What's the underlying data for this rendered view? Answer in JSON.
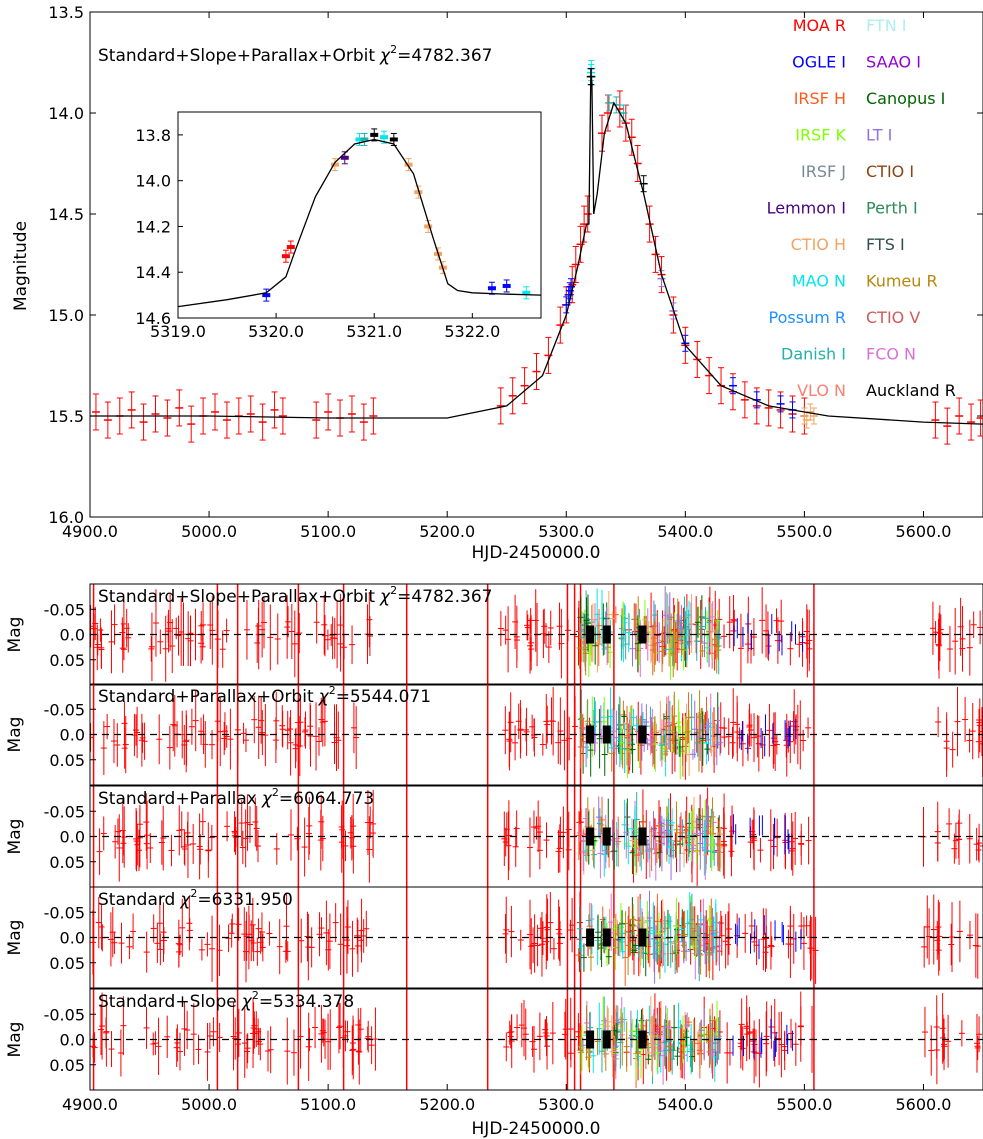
{
  "colors": {
    "MOA R": "#ff0000",
    "OGLE I": "#0000ff",
    "IRSF H": "#ff5a1e",
    "IRSF K": "#7fff00",
    "IRSF J": "#778899",
    "Lemmon I": "#4b0082",
    "CTIO H": "#f4a460",
    "MAO N": "#00e5ee",
    "Possum R": "#1e90ff",
    "Danish I": "#20b2aa",
    "VLO N": "#fa8072",
    "FTN I": "#afeeee",
    "SAAO I": "#9400d3",
    "Canopus I": "#006400",
    "LT I": "#9370db",
    "CTIO I": "#8b4513",
    "Perth I": "#2e8b57",
    "FTS I": "#2f4f4f",
    "Kumeu R": "#b8860b",
    "CTIO V": "#cd5c5c",
    "FCO N": "#da70d6",
    "Auckland R": "#000000"
  },
  "chart_data": [
    {
      "type": "scatter",
      "title": "Standard+Slope+Parallax+Orbit χ²=4782.367",
      "chi_label": "Standard+Slope+Parallax+Orbit",
      "chi_value": "4782.367",
      "xlabel": "HJD-2450000.0",
      "ylabel": "Magnitude",
      "xlim": [
        4900,
        5650
      ],
      "ylim": [
        16.0,
        13.5
      ],
      "y_inverted": true,
      "xticks": [
        "4900.0",
        "5000.0",
        "5100.0",
        "5200.0",
        "5300.0",
        "5400.0",
        "5500.0",
        "5600.0"
      ],
      "yticks": [
        "13.5",
        "14.0",
        "14.5",
        "15.0",
        "15.5",
        "16.0"
      ],
      "legend": {
        "placement": "top-right",
        "entries": [
          "MOA R",
          "OGLE I",
          "IRSF H",
          "IRSF K",
          "IRSF J",
          "Lemmon I",
          "CTIO H",
          "MAO N",
          "Possum R",
          "Danish I",
          "VLO N",
          "FTN I",
          "SAAO I",
          "Canopus I",
          "LT I",
          "CTIO I",
          "Perth I",
          "FTS I",
          "Kumeu R",
          "CTIO V",
          "FCO N",
          "Auckland R"
        ]
      },
      "model_curve": {
        "x": [
          4900,
          5000,
          5100,
          5200,
          5250,
          5280,
          5300,
          5310,
          5317,
          5319,
          5320.5,
          5321.0,
          5321.5,
          5323,
          5326,
          5332,
          5340,
          5350,
          5365,
          5380,
          5400,
          5430,
          5470,
          5520,
          5600,
          5650
        ],
        "y": [
          15.5,
          15.5,
          15.51,
          15.51,
          15.45,
          15.3,
          15.0,
          14.75,
          14.55,
          14.55,
          13.85,
          13.82,
          13.85,
          14.5,
          14.4,
          14.1,
          13.95,
          14.05,
          14.4,
          14.8,
          15.15,
          15.35,
          15.45,
          15.5,
          15.53,
          15.54
        ]
      },
      "data_points": {
        "MOA R": {
          "x": [
            4905,
            4915,
            4925,
            4935,
            4945,
            4955,
            4965,
            4975,
            4985,
            4995,
            5005,
            5015,
            5025,
            5035,
            5045,
            5055,
            5062,
            5090,
            5100,
            5110,
            5120,
            5130,
            5138,
            5245,
            5255,
            5265,
            5275,
            5285,
            5295,
            5300,
            5305,
            5308,
            5312,
            5315,
            5318,
            5330,
            5335,
            5345,
            5350,
            5355,
            5360,
            5370,
            5375,
            5380,
            5390,
            5400,
            5410,
            5420,
            5430,
            5440,
            5450,
            5460,
            5470,
            5480,
            5490,
            5500,
            5610,
            5620,
            5630,
            5640,
            5648
          ],
          "y": [
            15.48,
            15.52,
            15.5,
            15.47,
            15.53,
            15.49,
            15.51,
            15.46,
            15.54,
            15.5,
            15.48,
            15.52,
            15.5,
            15.49,
            15.53,
            15.47,
            15.5,
            15.52,
            15.48,
            15.51,
            15.49,
            15.53,
            15.5,
            15.45,
            15.4,
            15.35,
            15.28,
            15.2,
            15.05,
            14.95,
            14.85,
            14.75,
            14.65,
            14.55,
            14.5,
            14.1,
            14.0,
            13.98,
            14.05,
            14.12,
            14.25,
            14.55,
            14.7,
            14.8,
            15.0,
            15.15,
            15.22,
            15.3,
            15.35,
            15.38,
            15.42,
            15.45,
            15.46,
            15.47,
            15.49,
            15.5,
            15.52,
            15.55,
            15.5,
            15.53,
            15.51
          ]
        },
        "OGLE I": {
          "x": [
            5300,
            5302,
            5303,
            5304,
            5400,
            5440,
            5460,
            5480,
            5490
          ],
          "y": [
            14.95,
            14.9,
            14.88,
            14.86,
            15.14,
            15.35,
            15.42,
            15.44,
            15.47
          ]
        },
        "CTIO H": {
          "x": [
            5500,
            5502,
            5505,
            5508
          ],
          "y": [
            15.5,
            15.52,
            15.48,
            15.5
          ]
        },
        "MAO N": {
          "x": [
            5320.8,
            5321.0,
            5321.3
          ],
          "y": [
            13.8,
            13.78,
            13.82
          ]
        },
        "Danish I": {
          "x": [
            5336,
            5342,
            5348
          ],
          "y": [
            13.95,
            13.96,
            14.0
          ]
        },
        "LT I": {
          "x": [
            5380,
            5390
          ],
          "y": [
            14.82,
            14.98
          ]
        },
        "Auckland R": {
          "x": [
            5320.5,
            5321.0,
            5365
          ],
          "y": [
            13.82,
            13.82,
            14.35
          ]
        }
      },
      "inset": {
        "xlim": [
          5319.0,
          5322.7
        ],
        "ylim": [
          14.6,
          13.7
        ],
        "xticks": [
          "5319.0",
          "5320.0",
          "5321.0",
          "5322.0"
        ],
        "yticks": [
          "13.8",
          "14.0",
          "14.2",
          "14.4",
          "14.6"
        ],
        "model_curve": {
          "x": [
            5319.0,
            5319.5,
            5319.9,
            5320.1,
            5320.2,
            5320.4,
            5320.6,
            5320.8,
            5321.0,
            5321.2,
            5321.4,
            5321.6,
            5321.75,
            5321.85,
            5322.0,
            5322.3,
            5322.7
          ],
          "y": [
            14.55,
            14.52,
            14.49,
            14.42,
            14.3,
            14.07,
            13.92,
            13.84,
            13.82,
            13.84,
            13.97,
            14.25,
            14.45,
            14.48,
            14.49,
            14.495,
            14.5
          ]
        },
        "points": {
          "x": [
            5319.9,
            5320.1,
            5320.15,
            5320.6,
            5320.7,
            5320.85,
            5320.9,
            5321.0,
            5321.1,
            5321.2,
            5321.35,
            5321.45,
            5321.55,
            5321.65,
            5321.7,
            5322.2,
            5322.35,
            5322.55
          ],
          "y": [
            14.5,
            14.33,
            14.29,
            13.93,
            13.9,
            13.82,
            13.82,
            13.8,
            13.81,
            13.82,
            13.93,
            14.05,
            14.2,
            14.32,
            14.38,
            14.47,
            14.46,
            14.49
          ],
          "groups": [
            "OGLE I",
            "MOA R",
            "MOA R",
            "CTIO H",
            "Lemmon I",
            "MAO N",
            "Danish I",
            "Auckland R",
            "MAO N",
            "Auckland R",
            "CTIO H",
            "CTIO H",
            "CTIO H",
            "CTIO H",
            "CTIO H",
            "OGLE I",
            "OGLE I",
            "MAO N"
          ]
        }
      }
    },
    {
      "type": "scatter",
      "chi_label": "Standard+Slope+Parallax+Orbit",
      "chi_value": "4782.367",
      "ylabel": "Mag",
      "xlim": [
        4900,
        5650
      ],
      "ylim": [
        0.1,
        -0.1
      ],
      "yticks": [
        "-0.05",
        "0.0",
        "0.05"
      ],
      "zero_line": true
    },
    {
      "type": "scatter",
      "chi_label": "Standard+Parallax+Orbit",
      "chi_value": "5544.071",
      "ylabel": "Mag",
      "xlim": [
        4900,
        5650
      ],
      "ylim": [
        0.1,
        -0.1
      ],
      "yticks": [
        "-0.05",
        "0.0",
        "0.05"
      ],
      "zero_line": true
    },
    {
      "type": "scatter",
      "chi_label": "Standard+Parallax",
      "chi_value": "6064.773",
      "ylabel": "Mag",
      "xlim": [
        4900,
        5650
      ],
      "ylim": [
        0.1,
        -0.1
      ],
      "yticks": [
        "-0.05",
        "0.0",
        "0.05"
      ],
      "zero_line": true
    },
    {
      "type": "scatter",
      "chi_label": "Standard",
      "chi_value": "6331.950",
      "ylabel": "Mag",
      "xlim": [
        4900,
        5650
      ],
      "ylim": [
        0.1,
        -0.1
      ],
      "yticks": [
        "-0.05",
        "0.0",
        "0.05"
      ],
      "zero_line": true
    },
    {
      "type": "scatter",
      "chi_label": "Standard+Slope",
      "chi_value": "5334.378",
      "xlabel": "HJD-2450000.0",
      "ylabel": "Mag",
      "xlim": [
        4900,
        5650
      ],
      "ylim": [
        0.1,
        -0.1
      ],
      "xticks": [
        "4900.0",
        "5000.0",
        "5100.0",
        "5200.0",
        "5300.0",
        "5400.0",
        "5500.0",
        "5600.0"
      ],
      "yticks": [
        "-0.05",
        "0.0",
        "0.05"
      ],
      "zero_line": true
    }
  ]
}
